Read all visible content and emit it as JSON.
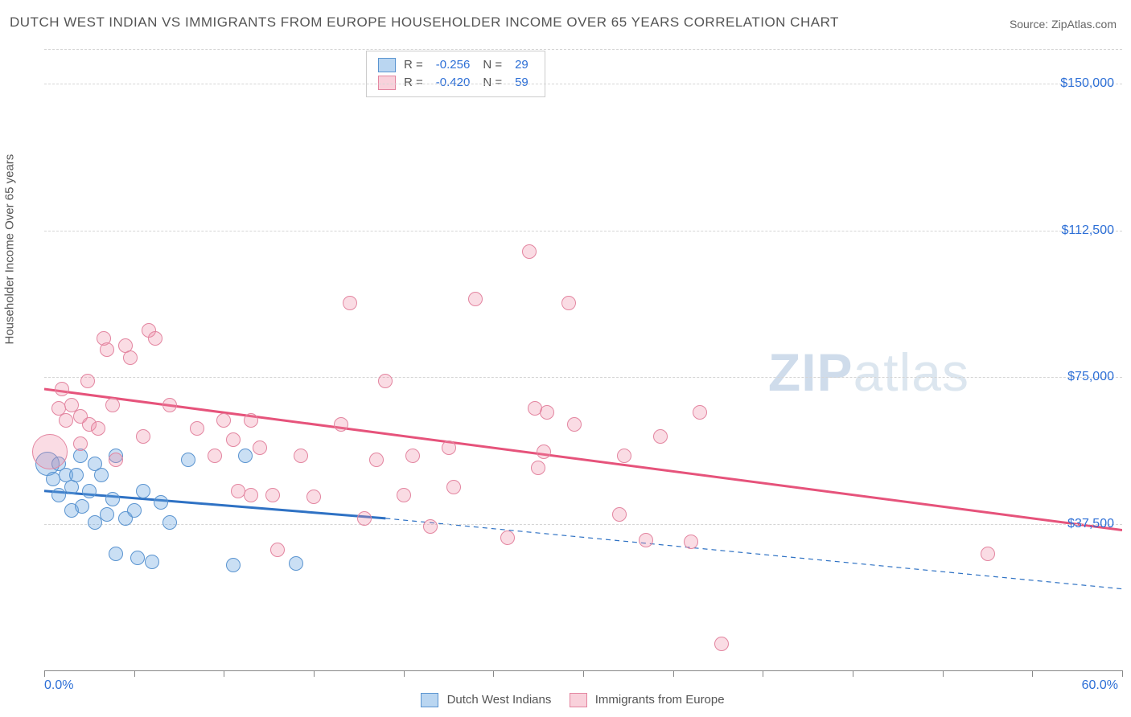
{
  "title": "DUTCH WEST INDIAN VS IMMIGRANTS FROM EUROPE HOUSEHOLDER INCOME OVER 65 YEARS CORRELATION CHART",
  "source": "Source: ZipAtlas.com",
  "ylabel": "Householder Income Over 65 years",
  "watermark_zip": "ZIP",
  "watermark_atlas": "atlas",
  "chart": {
    "type": "scatter",
    "xlim": [
      0,
      60
    ],
    "ylim": [
      0,
      160000
    ],
    "xtick_labels": {
      "0": "0.0%",
      "60": "60.0%"
    },
    "ytick_values": [
      37500,
      75000,
      112500,
      150000
    ],
    "ytick_labels": [
      "$37,500",
      "$75,000",
      "$112,500",
      "$150,000"
    ],
    "gridline_color": "#d5d5d5",
    "background_color": "#ffffff",
    "axis_color": "#888888",
    "tick_label_color": "#2d6fd6",
    "point_radius": 9,
    "trend_line_width": 3
  },
  "series": [
    {
      "name": "Dutch West Indians",
      "color_fill": "rgba(103,164,224,0.35)",
      "color_stroke": "#5a94d0",
      "line_color": "#2f72c4",
      "R": "-0.256",
      "N": "29",
      "trend": {
        "x1": 0,
        "y1": 46000,
        "x2_solid": 19,
        "y2_solid": 39000,
        "x2_dash": 60,
        "y2_dash": 21000
      },
      "points": [
        {
          "x": 0.2,
          "y": 53000,
          "r": 15
        },
        {
          "x": 0.5,
          "y": 49000
        },
        {
          "x": 0.8,
          "y": 45000
        },
        {
          "x": 0.8,
          "y": 53000
        },
        {
          "x": 1.2,
          "y": 50000
        },
        {
          "x": 1.5,
          "y": 41000
        },
        {
          "x": 1.5,
          "y": 47000
        },
        {
          "x": 1.8,
          "y": 50000
        },
        {
          "x": 2.1,
          "y": 42000
        },
        {
          "x": 2.0,
          "y": 55000
        },
        {
          "x": 2.5,
          "y": 46000
        },
        {
          "x": 2.8,
          "y": 53000
        },
        {
          "x": 2.8,
          "y": 38000
        },
        {
          "x": 3.2,
          "y": 50000
        },
        {
          "x": 3.5,
          "y": 40000
        },
        {
          "x": 3.8,
          "y": 44000
        },
        {
          "x": 4.0,
          "y": 55000
        },
        {
          "x": 4.0,
          "y": 30000
        },
        {
          "x": 4.5,
          "y": 39000
        },
        {
          "x": 5.0,
          "y": 41000
        },
        {
          "x": 5.2,
          "y": 29000
        },
        {
          "x": 5.5,
          "y": 46000
        },
        {
          "x": 6.0,
          "y": 28000
        },
        {
          "x": 6.5,
          "y": 43000
        },
        {
          "x": 7.0,
          "y": 38000
        },
        {
          "x": 8.0,
          "y": 54000
        },
        {
          "x": 10.5,
          "y": 27000
        },
        {
          "x": 11.2,
          "y": 55000
        },
        {
          "x": 14.0,
          "y": 27500
        }
      ]
    },
    {
      "name": "Immigrants from Europe",
      "color_fill": "rgba(240,140,165,0.30)",
      "color_stroke": "#e385a0",
      "line_color": "#e6537b",
      "R": "-0.420",
      "N": "59",
      "trend": {
        "x1": 0,
        "y1": 72000,
        "x2_solid": 60,
        "y2_solid": 36000,
        "x2_dash": 60,
        "y2_dash": 36000
      },
      "points": [
        {
          "x": 0.3,
          "y": 56000,
          "r": 22
        },
        {
          "x": 0.8,
          "y": 67000
        },
        {
          "x": 1.0,
          "y": 72000
        },
        {
          "x": 1.2,
          "y": 64000
        },
        {
          "x": 1.5,
          "y": 68000
        },
        {
          "x": 2.0,
          "y": 65000
        },
        {
          "x": 2.0,
          "y": 58000
        },
        {
          "x": 2.4,
          "y": 74000
        },
        {
          "x": 2.5,
          "y": 63000
        },
        {
          "x": 3.0,
          "y": 62000
        },
        {
          "x": 3.3,
          "y": 85000
        },
        {
          "x": 3.5,
          "y": 82000
        },
        {
          "x": 3.8,
          "y": 68000
        },
        {
          "x": 4.5,
          "y": 83000
        },
        {
          "x": 4.8,
          "y": 80000
        },
        {
          "x": 4.0,
          "y": 54000
        },
        {
          "x": 5.5,
          "y": 60000
        },
        {
          "x": 5.8,
          "y": 87000
        },
        {
          "x": 6.2,
          "y": 85000
        },
        {
          "x": 7.0,
          "y": 68000
        },
        {
          "x": 8.5,
          "y": 62000
        },
        {
          "x": 9.5,
          "y": 55000
        },
        {
          "x": 10.0,
          "y": 64000
        },
        {
          "x": 10.5,
          "y": 59000
        },
        {
          "x": 10.8,
          "y": 46000
        },
        {
          "x": 11.5,
          "y": 64000
        },
        {
          "x": 11.5,
          "y": 45000
        },
        {
          "x": 12.0,
          "y": 57000
        },
        {
          "x": 12.7,
          "y": 45000
        },
        {
          "x": 13.0,
          "y": 31000
        },
        {
          "x": 14.3,
          "y": 55000
        },
        {
          "x": 15.0,
          "y": 44500
        },
        {
          "x": 16.5,
          "y": 63000
        },
        {
          "x": 17.0,
          "y": 94000
        },
        {
          "x": 17.8,
          "y": 39000
        },
        {
          "x": 18.5,
          "y": 54000
        },
        {
          "x": 19.0,
          "y": 74000
        },
        {
          "x": 20.0,
          "y": 45000
        },
        {
          "x": 20.5,
          "y": 55000
        },
        {
          "x": 21.5,
          "y": 37000
        },
        {
          "x": 22.5,
          "y": 57000
        },
        {
          "x": 22.8,
          "y": 47000
        },
        {
          "x": 24.0,
          "y": 95000
        },
        {
          "x": 25.8,
          "y": 34000
        },
        {
          "x": 27.0,
          "y": 107000
        },
        {
          "x": 27.3,
          "y": 67000
        },
        {
          "x": 27.5,
          "y": 52000
        },
        {
          "x": 27.8,
          "y": 56000
        },
        {
          "x": 28.0,
          "y": 66000
        },
        {
          "x": 29.2,
          "y": 94000
        },
        {
          "x": 29.5,
          "y": 63000
        },
        {
          "x": 32.0,
          "y": 40000
        },
        {
          "x": 33.5,
          "y": 33500
        },
        {
          "x": 34.3,
          "y": 60000
        },
        {
          "x": 36.0,
          "y": 33000
        },
        {
          "x": 36.5,
          "y": 66000
        },
        {
          "x": 37.7,
          "y": 7000
        },
        {
          "x": 52.5,
          "y": 30000
        },
        {
          "x": 32.3,
          "y": 55000
        }
      ]
    }
  ],
  "legend": {
    "series1_label": "Dutch West Indians",
    "series2_label": "Immigrants from Europe",
    "R_label": "R =",
    "N_label": "N ="
  }
}
